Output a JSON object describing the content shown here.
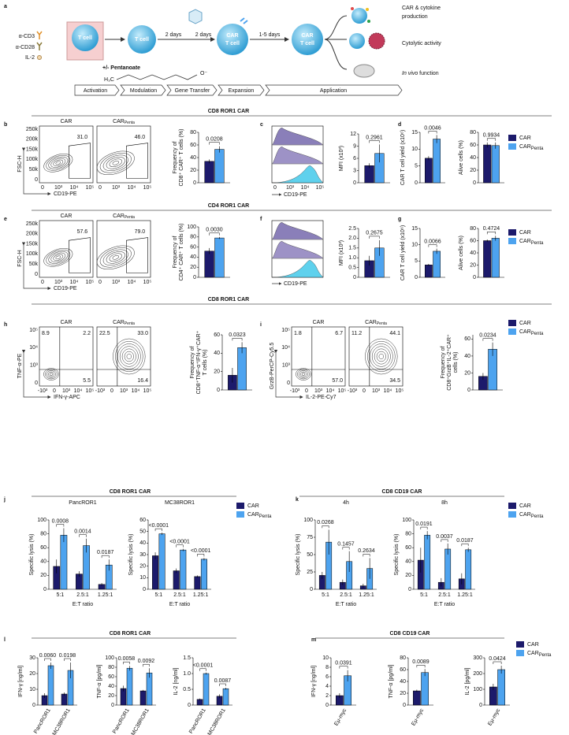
{
  "series": [
    {
      "name": "CAR",
      "color": "#1c1a6b"
    },
    {
      "name": "CAR",
      "subscript": "Penta",
      "color": "#4da3ef"
    }
  ],
  "letters": [
    "a",
    "b",
    "c",
    "d",
    "e",
    "f",
    "g",
    "h",
    "i",
    "j",
    "k",
    "l",
    "m"
  ],
  "headers": [
    "CD8 ROR1 CAR",
    "CD4 ROR1 CAR",
    "CD8 ROR1 CAR",
    "CD8 ROR1 CAR",
    "CD8 CD19 CAR",
    "CD8 ROR1 CAR",
    "CD8 CD19 CAR"
  ],
  "schematic": {
    "reagents": [
      "α-CD3",
      "α-CD28",
      "IL-2"
    ],
    "t_cell": "T cell",
    "days": [
      "2 days",
      "2 days",
      "1-5 days"
    ],
    "treatment": "+/- Pentanoate",
    "chem_left": "H₃C",
    "chem_right": "O⁻",
    "car_t_cell": [
      "CAR",
      "T cell"
    ],
    "outcomes": [
      [
        "CAR & cytokine",
        "production"
      ],
      [
        "Cytolytic activity"
      ],
      [
        "In vivo",
        " function"
      ]
    ],
    "steps": [
      "Activation",
      "Modulation",
      "Gene Transfer",
      "Expansion",
      "Application"
    ]
  },
  "flow": [
    {
      "ylabel": "FSC-H",
      "xlabel": "CD19-PE",
      "yticks": [
        "250k",
        "200k",
        "150k",
        "100k",
        "50k",
        "0"
      ],
      "xticks": [
        "0",
        "10³",
        "10⁴",
        "10⁵"
      ],
      "panels": [
        {
          "title": "CAR",
          "gate": "31.0"
        },
        {
          "title": "CAR",
          "subscript": "Penta",
          "gate": "46.0"
        }
      ]
    },
    {
      "ylabel": "FSC-H",
      "xlabel": "CD19-PE",
      "yticks": [
        "250k",
        "200k",
        "150k",
        "100k",
        "50k",
        "0"
      ],
      "xticks": [
        "0",
        "10³",
        "10⁴",
        "10⁵"
      ],
      "panels": [
        {
          "title": "CAR",
          "gate": "57.6"
        },
        {
          "title": "CAR",
          "subscript": "Penta",
          "gate": "79.0"
        }
      ]
    },
    {
      "ylabel": "TNF-α-PE",
      "xlabel": "IFN-γ-APC",
      "yticks": [
        "10⁵",
        "10⁴",
        "10³",
        "0"
      ],
      "xticks": [
        "-10³",
        "0",
        "10³",
        "10⁴",
        "10⁵"
      ],
      "panels": [
        {
          "title": "CAR",
          "quadrants": [
            "8.9",
            "2.2",
            "5.5"
          ]
        },
        {
          "title": "CAR",
          "subscript": "Penta",
          "quadrants": [
            "22.5",
            "33.0",
            "16.4"
          ]
        }
      ]
    },
    {
      "ylabel": "GrzB-PerCP-Cy5.5",
      "xlabel": "IL-2-PE-Cy7",
      "yticks": [
        "10⁵",
        "10⁴",
        "10³",
        "0"
      ],
      "xticks": [
        "-10³",
        "0",
        "10³",
        "10⁴",
        "10⁵"
      ],
      "panels": [
        {
          "title": "CAR",
          "quadrants": [
            "1.8",
            "6.7",
            "57.0"
          ]
        },
        {
          "title": "CAR",
          "subscript": "Penta",
          "quadrants": [
            "11.2",
            "44.1",
            "34.5"
          ]
        }
      ]
    }
  ],
  "histograms": [
    {
      "xlabel": "CD19-PE",
      "xticks": [
        "0",
        "10³",
        "10⁴",
        "10⁵"
      ]
    },
    {
      "xlabel": "CD19-PE"
    }
  ],
  "bars": [
    {
      "ylabel": [
        "Frequency of",
        "CD8⁺ CAR⁺ T cells (%)"
      ],
      "ylim": [
        0,
        80
      ],
      "yticks": [
        0,
        20,
        40,
        60,
        80
      ],
      "series": [
        {
          "values": [
            34
          ],
          "errors": [
            3
          ]
        },
        {
          "values": [
            53
          ],
          "errors": [
            5
          ]
        }
      ],
      "pvalues": [
        "0.0208"
      ]
    },
    {
      "ylabel": [
        "MFI (x10³)"
      ],
      "ylim": [
        0,
        12
      ],
      "yticks": [
        0,
        3,
        6,
        9,
        12
      ],
      "series": [
        {
          "values": [
            4.2
          ],
          "errors": [
            0.6
          ]
        },
        {
          "values": [
            7.2
          ],
          "errors": [
            2.2
          ]
        }
      ],
      "pvalues": [
        "0.2961"
      ]
    },
    {
      "ylabel": [
        "CAR T cell yield (x10⁶)"
      ],
      "ylim": [
        0,
        15
      ],
      "yticks": [
        0,
        5,
        10,
        15
      ],
      "series": [
        {
          "values": [
            7.3
          ],
          "errors": [
            0.6
          ]
        },
        {
          "values": [
            13
          ],
          "errors": [
            1.2
          ]
        }
      ],
      "pvalues": [
        "0.0046"
      ]
    },
    {
      "ylabel": [
        "Alive cells (%)"
      ],
      "ylim": [
        0,
        80
      ],
      "yticks": [
        0,
        20,
        40,
        60,
        80
      ],
      "series": [
        {
          "values": [
            60
          ],
          "errors": [
            4
          ]
        },
        {
          "values": [
            59
          ],
          "errors": [
            5
          ]
        }
      ],
      "pvalues": [
        "0.9934"
      ]
    },
    {
      "ylabel": [
        "Frequency of",
        "CD4⁺ CAR⁺ T cells (%)"
      ],
      "ylim": [
        0,
        100
      ],
      "yticks": [
        0,
        20,
        40,
        60,
        80,
        100
      ],
      "series": [
        {
          "values": [
            52
          ],
          "errors": [
            6
          ]
        },
        {
          "values": [
            78
          ],
          "errors": [
            2
          ]
        }
      ],
      "pvalues": [
        "0.0030"
      ]
    },
    {
      "ylabel": [
        "MFI (x10³)"
      ],
      "ylim": [
        0,
        2.5
      ],
      "yticks": [
        0,
        0.5,
        {
          "value": 1,
          "label": "1.0"
        },
        1.5,
        {
          "value": 2,
          "label": "2.0"
        },
        2.5
      ],
      "series": [
        {
          "values": [
            0.85
          ],
          "errors": [
            0.25
          ]
        },
        {
          "values": [
            1.5
          ],
          "errors": [
            0.4
          ]
        }
      ],
      "pvalues": [
        "0.2675"
      ]
    },
    {
      "ylabel": [
        "CAR T cell yield (x10⁶)"
      ],
      "ylim": [
        0,
        15
      ],
      "yticks": [
        0,
        5,
        10,
        15
      ],
      "series": [
        {
          "values": [
            3.8
          ],
          "errors": [
            0.3
          ]
        },
        {
          "values": [
            8
          ],
          "errors": [
            0.8
          ]
        }
      ],
      "pvalues": [
        "0.0066"
      ]
    },
    {
      "ylabel": [
        "Alive cells (%)"
      ],
      "ylim": [
        0,
        80
      ],
      "yticks": [
        0,
        20,
        40,
        60,
        80
      ],
      "series": [
        {
          "values": [
            60
          ],
          "errors": [
            2
          ]
        },
        {
          "values": [
            64
          ],
          "errors": [
            4
          ]
        }
      ],
      "pvalues": [
        "0.4724"
      ]
    },
    {
      "ylabel": [
        "Frequency of",
        "CD8⁺TNF-α⁺IFN-γ⁺CAR⁺",
        "T cells (%)"
      ],
      "ylim": [
        0,
        60
      ],
      "yticks": [
        0,
        20,
        40,
        60
      ],
      "series": [
        {
          "values": [
            16
          ],
          "errors": [
            8
          ]
        },
        {
          "values": [
            46
          ],
          "errors": [
            6
          ]
        }
      ],
      "pvalues": [
        "0.0323"
      ]
    },
    {
      "ylabel": [
        "Frequency of",
        "CD8⁺GrzB⁺IL-2⁺CAR⁺",
        "cells (%)"
      ],
      "ylim": [
        0,
        65
      ],
      "yticks": [
        0,
        20,
        40,
        60
      ],
      "series": [
        {
          "values": [
            16
          ],
          "errors": [
            4
          ]
        },
        {
          "values": [
            48
          ],
          "errors": [
            8
          ]
        }
      ],
      "pvalues": [
        "0.0234"
      ]
    },
    {
      "title": "PancROR1",
      "xlabel": "E:T ratio",
      "categories": [
        "5:1",
        "2.5:1",
        "1.25:1"
      ],
      "ylabel": [
        "Specific lysis (%)"
      ],
      "ylim": [
        0,
        100
      ],
      "yticks": [
        0,
        20,
        40,
        60,
        80,
        100
      ],
      "series": [
        {
          "values": [
            33,
            22,
            7
          ],
          "errors": [
            10,
            4,
            2
          ]
        },
        {
          "values": [
            78,
            63,
            35
          ],
          "errors": [
            10,
            10,
            8
          ]
        }
      ],
      "pvalues": [
        "0.0008",
        "0.0014",
        "0.0187"
      ]
    },
    {
      "title": "MC38ROR1",
      "xlabel": "E:T ratio",
      "categories": [
        "5:1",
        "2.5:1",
        "1.25:1"
      ],
      "ylabel": [
        "Specific lysis (%)"
      ],
      "ylim": [
        0,
        60
      ],
      "yticks": [
        0,
        10,
        20,
        30,
        40,
        50,
        60
      ],
      "series": [
        {
          "values": [
            29,
            16,
            11
          ],
          "errors": [
            3,
            2,
            1
          ]
        },
        {
          "values": [
            48,
            34,
            26
          ],
          "errors": [
            1,
            1,
            1
          ]
        }
      ],
      "pvalues": [
        "<0.0001",
        "<0.0001",
        "<0.0001"
      ]
    },
    {
      "title": "4h",
      "xlabel": "E:T ratio",
      "categories": [
        "5:1",
        "2.5:1",
        "1.25:1"
      ],
      "ylabel": [
        "Specific lysis (%)"
      ],
      "ylim": [
        0,
        100
      ],
      "yticks": [
        0,
        25,
        50,
        75,
        100
      ],
      "series": [
        {
          "values": [
            20,
            10,
            5
          ],
          "errors": [
            5,
            4,
            3
          ]
        },
        {
          "values": [
            68,
            40,
            30
          ],
          "errors": [
            18,
            15,
            15
          ]
        }
      ],
      "pvalues": [
        "0.0268",
        "0.1457",
        "0.2634"
      ]
    },
    {
      "title": "8h",
      "xlabel": "E:T ratio",
      "categories": [
        "5:1",
        "2.5:1",
        "1.25:1"
      ],
      "ylabel": [
        "Specific lysis (%)"
      ],
      "ylim": [
        0,
        100
      ],
      "yticks": [
        0,
        20,
        40,
        60,
        80,
        100
      ],
      "series": [
        {
          "values": [
            42,
            10,
            15
          ],
          "errors": [
            18,
            6,
            8
          ]
        },
        {
          "values": [
            78,
            58,
            57
          ],
          "errors": [
            6,
            8,
            3
          ]
        }
      ],
      "pvalues": [
        "0.0191",
        "0.0037",
        "0.0187"
      ]
    },
    {
      "categories": [
        "PancROR1",
        "MC38ROR1"
      ],
      "ylabel": [
        "IFN-γ [ng/ml]"
      ],
      "ylim": [
        0,
        30
      ],
      "yticks": [
        0,
        10,
        20,
        30
      ],
      "series": [
        {
          "values": [
            6,
            7
          ],
          "errors": [
            1.5,
            1
          ]
        },
        {
          "values": [
            25,
            22
          ],
          "errors": [
            2,
            5
          ]
        }
      ],
      "pvalues": [
        "0.0060",
        "0.0198"
      ]
    },
    {
      "categories": [
        "PancROR1",
        "MC38ROR1"
      ],
      "ylabel": [
        "TNF-α [pg/ml]"
      ],
      "ylim": [
        0,
        100
      ],
      "yticks": [
        0,
        20,
        40,
        60,
        80,
        100
      ],
      "series": [
        {
          "values": [
            35,
            30
          ],
          "errors": [
            6,
            2
          ]
        },
        {
          "values": [
            78,
            68
          ],
          "errors": [
            5,
            10
          ]
        }
      ],
      "pvalues": [
        "0.0058",
        "0.0092"
      ]
    },
    {
      "categories": [
        "PancROR1",
        "MC38ROR1"
      ],
      "ylabel": [
        "IL-2 [ng/ml]"
      ],
      "ylim": [
        0,
        1.5
      ],
      "yticks": [
        0,
        0.5,
        {
          "value": 1,
          "label": "1.0"
        },
        1.5
      ],
      "series": [
        {
          "values": [
            0.18,
            0.28
          ],
          "errors": [
            0.03,
            0.06
          ]
        },
        {
          "values": [
            1.0,
            0.52
          ],
          "errors": [
            0.03,
            0.03
          ]
        }
      ],
      "pvalues": [
        "<0.0001",
        "0.0087"
      ]
    },
    {
      "categories": [
        "Eμ-myc"
      ],
      "ylabel": [
        "IFN-γ [ng/ml]"
      ],
      "ylim": [
        0,
        10
      ],
      "yticks": [
        0,
        2,
        4,
        6,
        8,
        10
      ],
      "series": [
        {
          "values": [
            2
          ],
          "errors": [
            0.5
          ]
        },
        {
          "values": [
            6.2
          ],
          "errors": [
            1.2
          ]
        }
      ],
      "pvalues": [
        "0.0391"
      ]
    },
    {
      "categories": [
        "Eμ-myc"
      ],
      "ylabel": [
        "TNF-α [pg/ml]"
      ],
      "ylim": [
        0,
        80
      ],
      "yticks": [
        0,
        20,
        40,
        60,
        80
      ],
      "series": [
        {
          "values": [
            24
          ],
          "errors": [
            2
          ]
        },
        {
          "values": [
            55
          ],
          "errors": [
            6
          ]
        }
      ],
      "pvalues": [
        "0.0089"
      ]
    },
    {
      "categories": [
        "Eμ-myc"
      ],
      "ylabel": [
        "IL-2 [pg/ml]"
      ],
      "ylim": [
        0,
        300
      ],
      "yticks": [
        0,
        100,
        200,
        300
      ],
      "series": [
        {
          "values": [
            115
          ],
          "errors": [
            20
          ]
        },
        {
          "values": [
            225
          ],
          "errors": [
            25
          ]
        }
      ],
      "pvalues": [
        "0.0424"
      ]
    }
  ]
}
